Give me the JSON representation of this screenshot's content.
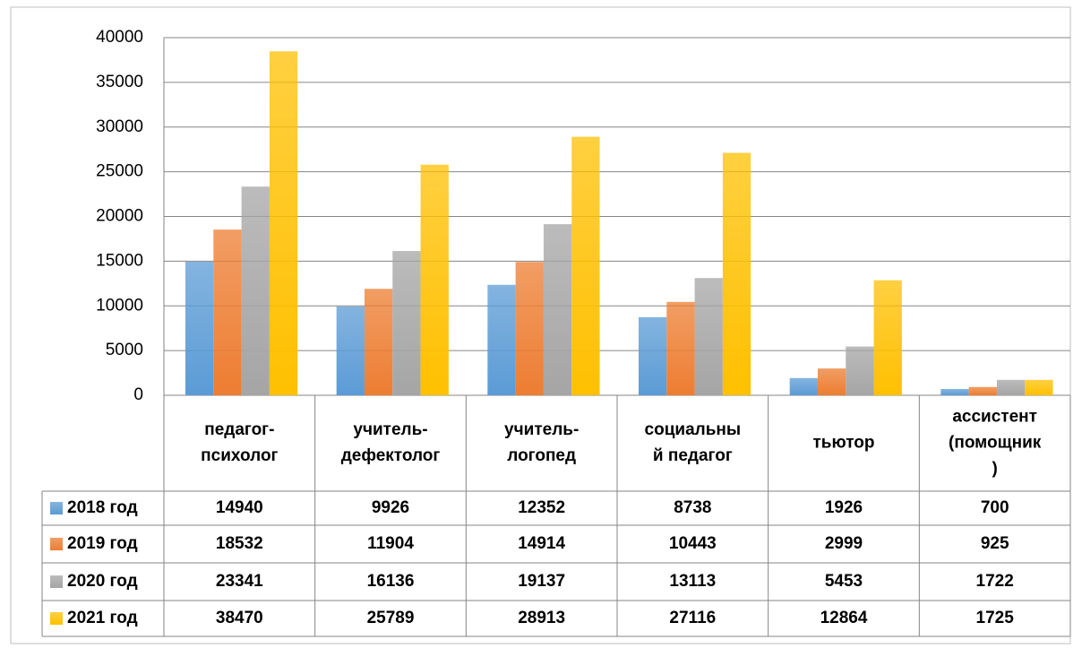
{
  "chart_data": {
    "type": "bar",
    "categories": [
      "педагог-\nпсихолог",
      "учитель-\nдефектолог",
      "учитель-\nлогопед",
      "социальны\nй педагог",
      "тьютор",
      "ассистент\n(помощник\n)"
    ],
    "series": [
      {
        "name": "2018 год",
        "color": "#5b9bd5",
        "values": [
          14940,
          9926,
          12352,
          8738,
          1926,
          700
        ]
      },
      {
        "name": "2019 год",
        "color": "#ed7d31",
        "values": [
          18532,
          11904,
          14914,
          10443,
          2999,
          925
        ]
      },
      {
        "name": "2020 год",
        "color": "#a5a5a5",
        "values": [
          23341,
          16136,
          19137,
          13113,
          5453,
          1722
        ]
      },
      {
        "name": "2021 год",
        "color": "#ffc000",
        "values": [
          38470,
          25789,
          28913,
          27116,
          12864,
          1725
        ]
      }
    ],
    "ylim": [
      0,
      40000
    ],
    "yticks": [
      0,
      5000,
      10000,
      15000,
      20000,
      25000,
      30000,
      35000,
      40000
    ],
    "grid": true,
    "data_table": true
  }
}
